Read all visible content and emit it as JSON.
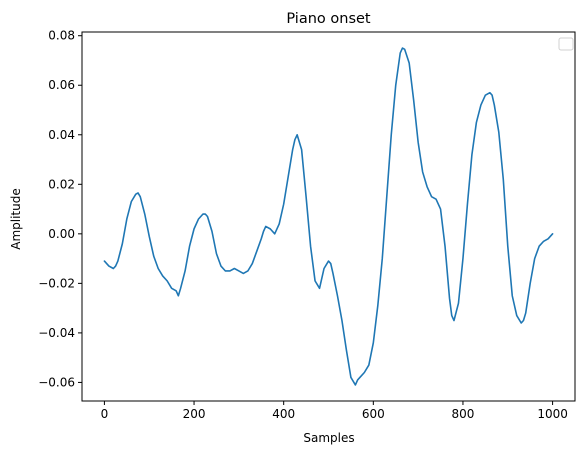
{
  "chart_data": {
    "type": "line",
    "title": "Piano onset",
    "xlabel": "Samples",
    "ylabel": "Amplitude",
    "xlim": [
      -50,
      1050
    ],
    "ylim": [
      -0.0675,
      0.0815
    ],
    "xticks": [
      0,
      200,
      400,
      600,
      800,
      1000
    ],
    "xtick_labels": [
      "0",
      "200",
      "400",
      "600",
      "800",
      "1000"
    ],
    "yticks": [
      -0.06,
      -0.04,
      -0.02,
      0.0,
      0.02,
      0.04,
      0.06,
      0.08
    ],
    "ytick_labels": [
      "−0.06",
      "−0.04",
      "−0.02",
      "0.00",
      "0.02",
      "0.04",
      "0.06",
      "0.08"
    ],
    "grid": false,
    "legend": "top-right (empty)",
    "series": [
      {
        "color": "#1f77b4",
        "x": [
          0,
          10,
          20,
          25,
          30,
          40,
          50,
          60,
          70,
          75,
          80,
          90,
          100,
          110,
          120,
          130,
          140,
          150,
          160,
          165,
          170,
          180,
          190,
          200,
          210,
          220,
          225,
          230,
          240,
          250,
          260,
          270,
          280,
          290,
          300,
          310,
          320,
          330,
          340,
          350,
          355,
          360,
          370,
          380,
          390,
          400,
          410,
          420,
          425,
          430,
          440,
          450,
          460,
          470,
          480,
          490,
          500,
          505,
          510,
          520,
          530,
          540,
          550,
          560,
          565,
          570,
          580,
          590,
          600,
          610,
          620,
          630,
          640,
          650,
          660,
          665,
          670,
          680,
          690,
          700,
          710,
          720,
          730,
          740,
          750,
          760,
          770,
          775,
          780,
          790,
          800,
          810,
          820,
          830,
          840,
          850,
          860,
          865,
          870,
          880,
          890,
          900,
          910,
          920,
          930,
          935,
          940,
          950,
          960,
          970,
          980,
          990,
          1000
        ],
        "y": [
          -0.011,
          -0.013,
          -0.014,
          -0.013,
          -0.011,
          -0.004,
          0.006,
          0.013,
          0.016,
          0.0165,
          0.015,
          0.008,
          -0.001,
          -0.009,
          -0.014,
          -0.017,
          -0.019,
          -0.022,
          -0.023,
          -0.025,
          -0.022,
          -0.015,
          -0.005,
          0.002,
          0.006,
          0.008,
          0.008,
          0.007,
          0.001,
          -0.008,
          -0.013,
          -0.015,
          -0.015,
          -0.014,
          -0.015,
          -0.016,
          -0.015,
          -0.012,
          -0.007,
          -0.002,
          0.001,
          0.003,
          0.002,
          0.0,
          0.004,
          0.012,
          0.023,
          0.034,
          0.038,
          0.04,
          0.034,
          0.015,
          -0.005,
          -0.019,
          -0.022,
          -0.014,
          -0.011,
          -0.012,
          -0.016,
          -0.025,
          -0.035,
          -0.047,
          -0.058,
          -0.061,
          -0.059,
          -0.058,
          -0.056,
          -0.053,
          -0.044,
          -0.029,
          -0.01,
          0.015,
          0.04,
          0.06,
          0.073,
          0.075,
          0.0745,
          0.069,
          0.054,
          0.037,
          0.025,
          0.019,
          0.015,
          0.014,
          0.01,
          -0.005,
          -0.026,
          -0.033,
          -0.035,
          -0.028,
          -0.01,
          0.012,
          0.032,
          0.045,
          0.052,
          0.056,
          0.057,
          0.056,
          0.052,
          0.041,
          0.022,
          -0.005,
          -0.025,
          -0.033,
          -0.036,
          -0.035,
          -0.032,
          -0.02,
          -0.01,
          -0.005,
          -0.003,
          -0.002,
          0.0
        ]
      }
    ]
  }
}
